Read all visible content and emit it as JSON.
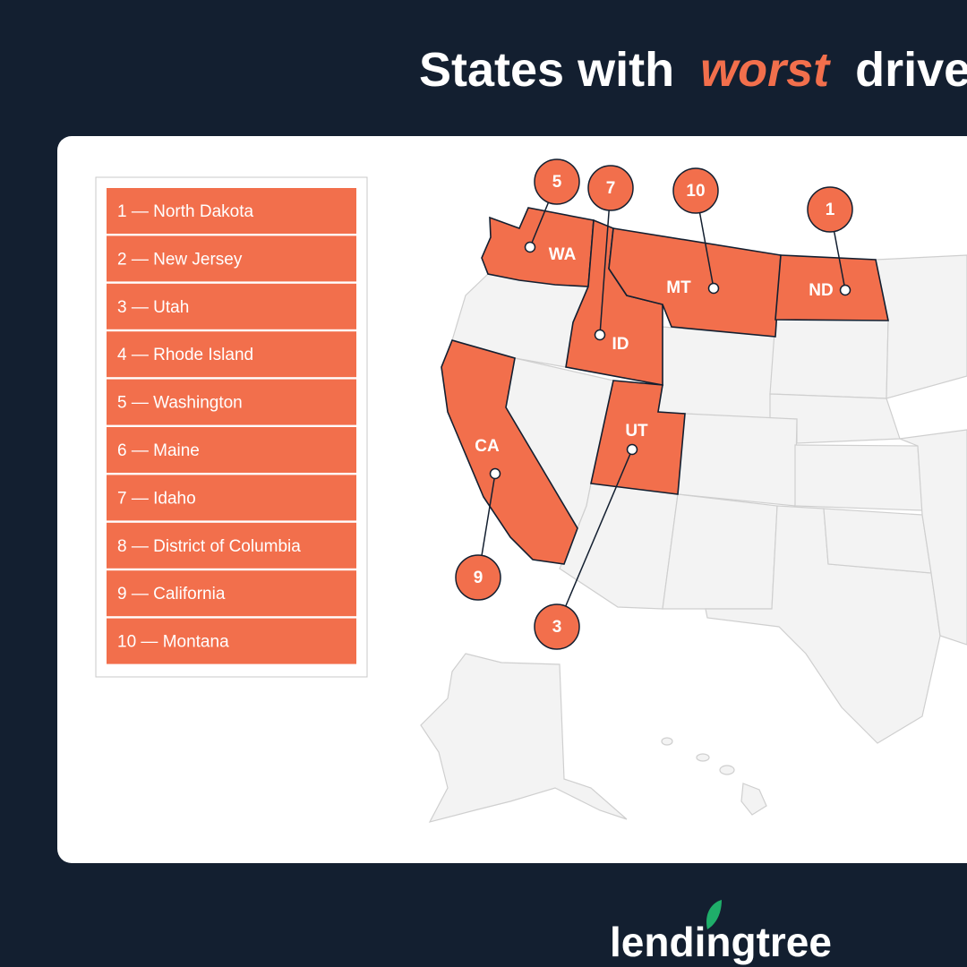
{
  "header": {
    "title_before": "States with",
    "title_highlight": "worst",
    "title_after": "drive"
  },
  "list": [
    "1 — North Dakota",
    "2 — New Jersey",
    "3 — Utah",
    "4 — Rhode Island",
    "5 — Washington",
    "6 — Maine",
    "7 — Idaho",
    "8 — District of Columbia",
    "9 — California",
    "10 — Montana"
  ],
  "map": {
    "markers": [
      {
        "abbr": "WA",
        "rank": 5
      },
      {
        "abbr": "ID",
        "rank": 7
      },
      {
        "abbr": "MT",
        "rank": 10
      },
      {
        "abbr": "ND",
        "rank": 1
      },
      {
        "abbr": "CA",
        "rank": 9
      },
      {
        "abbr": "UT",
        "rank": 3
      }
    ]
  },
  "footer": {
    "logo": "lendingtree"
  }
}
